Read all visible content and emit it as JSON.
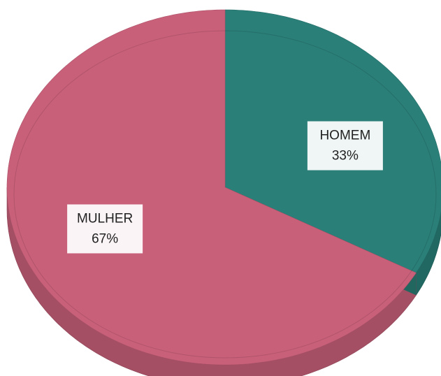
{
  "chart_data": {
    "type": "pie",
    "categories": [
      "HOMEM",
      "MULHER"
    ],
    "values": [
      33,
      67
    ],
    "value_labels": [
      "33%",
      "67%"
    ],
    "colors": [
      "#2a7f78",
      "#c9607a"
    ]
  }
}
